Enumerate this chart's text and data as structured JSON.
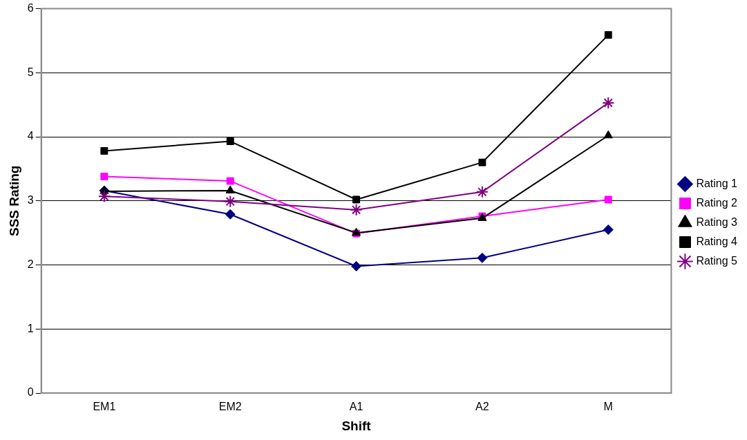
{
  "chart_data": {
    "type": "line",
    "xlabel": "Shift",
    "ylabel": "SSS Rating",
    "categories": [
      "EM1",
      "EM2",
      "A1",
      "A2",
      "M"
    ],
    "ylim": [
      0,
      6
    ],
    "yticks": [
      0,
      1,
      2,
      3,
      4,
      5,
      6
    ],
    "grid": "y",
    "legend": "right",
    "line_style": "solid",
    "series": [
      {
        "name": "Rating 1",
        "color": "#000080",
        "marker": "diamond",
        "values": [
          3.16,
          2.79,
          1.98,
          2.11,
          2.55
        ]
      },
      {
        "name": "Rating 2",
        "color": "#ff00ff",
        "marker": "square",
        "values": [
          3.38,
          3.31,
          2.49,
          2.76,
          3.02
        ]
      },
      {
        "name": "Rating 3",
        "color": "#000000",
        "marker": "triangle",
        "values": [
          3.15,
          3.16,
          2.5,
          2.73,
          4.02
        ]
      },
      {
        "name": "Rating 4",
        "color": "#000000",
        "marker": "square",
        "values": [
          3.78,
          3.93,
          3.02,
          3.6,
          5.59
        ]
      },
      {
        "name": "Rating 5",
        "color": "#800080",
        "marker": "cross",
        "values": [
          3.07,
          2.99,
          2.86,
          3.14,
          4.53
        ]
      }
    ]
  }
}
